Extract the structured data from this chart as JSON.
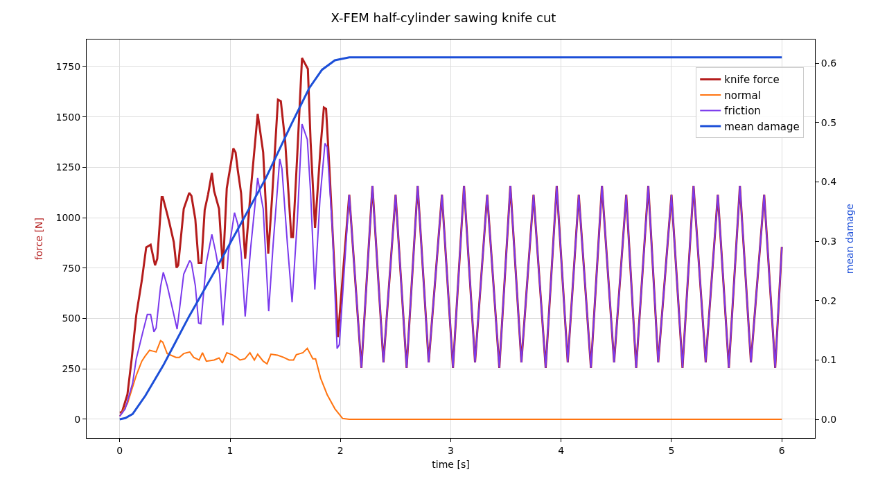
{
  "chart_data": {
    "type": "line",
    "title": "X-FEM half-cylinder sawing knife cut",
    "xlabel": "time [s]",
    "ylabel": "force [N]",
    "y2label": "mean damage",
    "xlim": [
      -0.3,
      6.3
    ],
    "xticks": [
      0,
      1,
      2,
      3,
      4,
      5,
      6
    ],
    "ylim": [
      -93,
      1884
    ],
    "yticks": [
      0,
      250,
      500,
      750,
      1000,
      1250,
      1500,
      1750
    ],
    "y2lim": [
      -0.0315,
      0.64
    ],
    "y2ticks": [
      {
        "value": 0,
        "label": "0.0"
      },
      {
        "value": 0.1,
        "label": "0.1"
      },
      {
        "value": 0.2,
        "label": "0.2"
      },
      {
        "value": 0.3,
        "label": "0.3"
      },
      {
        "value": 0.4,
        "label": "0.4"
      },
      {
        "value": 0.5,
        "label": "0.5"
      },
      {
        "value": 0.6,
        "label": "0.6"
      }
    ],
    "grid": true,
    "legend": "top right",
    "line_style": "solid",
    "marker": "none",
    "series": [
      {
        "name": "knife force",
        "color": "#b41c1c",
        "x": [
          0,
          0.02,
          0.07,
          0.11,
          0.15,
          0.2,
          0.24,
          0.28,
          0.32,
          0.34,
          0.38,
          0.39,
          0.43,
          0.45,
          0.49,
          0.515,
          0.53,
          0.58,
          0.63,
          0.65,
          0.685,
          0.715,
          0.74,
          0.77,
          0.8,
          0.835,
          0.855,
          0.9,
          0.935,
          0.97,
          1.005,
          1.03,
          1.05,
          1.07,
          1.1,
          1.137,
          1.185,
          1.25,
          1.3,
          1.346,
          1.38,
          1.434,
          1.46,
          1.5,
          1.555,
          1.57,
          1.61,
          1.652,
          1.705,
          1.73,
          1.77,
          1.82,
          1.85,
          1.87,
          1.9,
          1.977,
          2.08,
          2.19,
          2.29,
          2.39,
          2.5,
          2.6,
          2.7,
          2.8,
          2.92,
          3.02,
          3.12,
          3.22,
          3.33,
          3.44,
          3.54,
          3.64,
          3.75,
          3.86,
          3.96,
          4.06,
          4.16,
          4.27,
          4.37,
          4.48,
          4.59,
          4.68,
          4.79,
          4.88,
          5.0,
          5.1,
          5.2,
          5.31,
          5.42,
          5.52,
          5.62,
          5.72,
          5.84,
          5.94,
          6.0
        ],
        "values": [
          34,
          34,
          124,
          307,
          517,
          688,
          853,
          866,
          764,
          796,
          1102,
          1102,
          1019,
          975,
          879,
          752,
          764,
          1044,
          1123,
          1108,
          993,
          775,
          775,
          1038,
          1114,
          1222,
          1133,
          1044,
          746,
          1146,
          1261,
          1343,
          1324,
          1235,
          1121,
          796,
          1121,
          1515,
          1324,
          822,
          1095,
          1585,
          1578,
          1375,
          904,
          904,
          1324,
          1792,
          1738,
          1375,
          949,
          1350,
          1547,
          1540,
          1248,
          408,
          1114,
          255,
          1158,
          282,
          1114,
          255,
          1158,
          282,
          1114,
          255,
          1158,
          282,
          1114,
          255,
          1158,
          282,
          1114,
          255,
          1158,
          282,
          1114,
          255,
          1158,
          282,
          1114,
          255,
          1158,
          282,
          1114,
          255,
          1158,
          282,
          1114,
          255,
          1158,
          282,
          1114,
          255,
          855
        ]
      },
      {
        "name": "normal",
        "color": "#ff7410",
        "x": [
          0,
          0.07,
          0.15,
          0.2,
          0.23,
          0.27,
          0.3,
          0.33,
          0.37,
          0.39,
          0.43,
          0.51,
          0.54,
          0.58,
          0.635,
          0.67,
          0.72,
          0.75,
          0.785,
          0.855,
          0.9,
          0.93,
          0.97,
          1.02,
          1.06,
          1.09,
          1.135,
          1.18,
          1.22,
          1.25,
          1.3,
          1.335,
          1.37,
          1.43,
          1.485,
          1.535,
          1.575,
          1.6,
          1.66,
          1.7,
          1.75,
          1.775,
          1.82,
          1.88,
          1.95,
          2.02,
          2.08,
          6.0
        ],
        "values": [
          15,
          78,
          218,
          288,
          313,
          342,
          338,
          334,
          390,
          383,
          326,
          307,
          307,
          326,
          334,
          307,
          294,
          330,
          288,
          294,
          304,
          279,
          330,
          320,
          307,
          294,
          300,
          330,
          294,
          323,
          288,
          275,
          323,
          318,
          307,
          294,
          294,
          320,
          330,
          352,
          300,
          300,
          205,
          122,
          52,
          4,
          0,
          0
        ]
      },
      {
        "name": "friction",
        "color": "#7b3aec",
        "x": [
          0,
          0.05,
          0.117,
          0.15,
          0.21,
          0.25,
          0.28,
          0.31,
          0.33,
          0.37,
          0.395,
          0.43,
          0.465,
          0.52,
          0.58,
          0.635,
          0.65,
          0.685,
          0.715,
          0.735,
          0.785,
          0.835,
          0.87,
          0.905,
          0.935,
          0.985,
          1.04,
          1.07,
          1.1,
          1.137,
          1.185,
          1.25,
          1.3,
          1.35,
          1.39,
          1.45,
          1.47,
          1.52,
          1.562,
          1.61,
          1.652,
          1.7,
          1.73,
          1.768,
          1.815,
          1.86,
          1.88,
          1.93,
          1.97,
          1.99,
          2.08,
          2.19,
          2.29,
          2.39,
          2.5,
          2.6,
          2.7,
          2.8,
          2.92,
          3.02,
          3.12,
          3.22,
          3.33,
          3.44,
          3.54,
          3.64,
          3.75,
          3.86,
          3.96,
          4.06,
          4.16,
          4.27,
          4.37,
          4.48,
          4.59,
          4.68,
          4.79,
          4.88,
          5.0,
          5.1,
          5.2,
          5.31,
          5.42,
          5.52,
          5.62,
          5.72,
          5.84,
          5.94,
          6.0
        ],
        "values": [
          15,
          52,
          179,
          300,
          434,
          520,
          520,
          434,
          453,
          657,
          729,
          663,
          580,
          447,
          720,
          788,
          775,
          663,
          478,
          474,
          777,
          917,
          828,
          720,
          466,
          828,
          1025,
          968,
          828,
          510,
          841,
          1197,
          1044,
          536,
          866,
          1292,
          1243,
          866,
          580,
          993,
          1464,
          1388,
          1121,
          644,
          1095,
          1369,
          1350,
          917,
          351,
          370,
          1114,
          255,
          1158,
          282,
          1114,
          255,
          1158,
          282,
          1114,
          255,
          1158,
          282,
          1114,
          255,
          1158,
          282,
          1114,
          255,
          1158,
          282,
          1114,
          255,
          1158,
          282,
          1114,
          255,
          1158,
          282,
          1114,
          255,
          1158,
          282,
          1114,
          255,
          1158,
          282,
          1114,
          255,
          855
        ]
      },
      {
        "name": "mean damage",
        "color": "#1c4fd8",
        "axis": "y2",
        "x": [
          0,
          0.05,
          0.117,
          0.233,
          0.395,
          0.627,
          0.86,
          1.09,
          1.323,
          1.555,
          1.717,
          1.833,
          1.95,
          2.08,
          6.0
        ],
        "values": [
          0,
          0.002,
          0.009,
          0.04,
          0.091,
          0.173,
          0.249,
          0.327,
          0.406,
          0.497,
          0.558,
          0.589,
          0.605,
          0.61,
          0.61
        ]
      }
    ]
  }
}
